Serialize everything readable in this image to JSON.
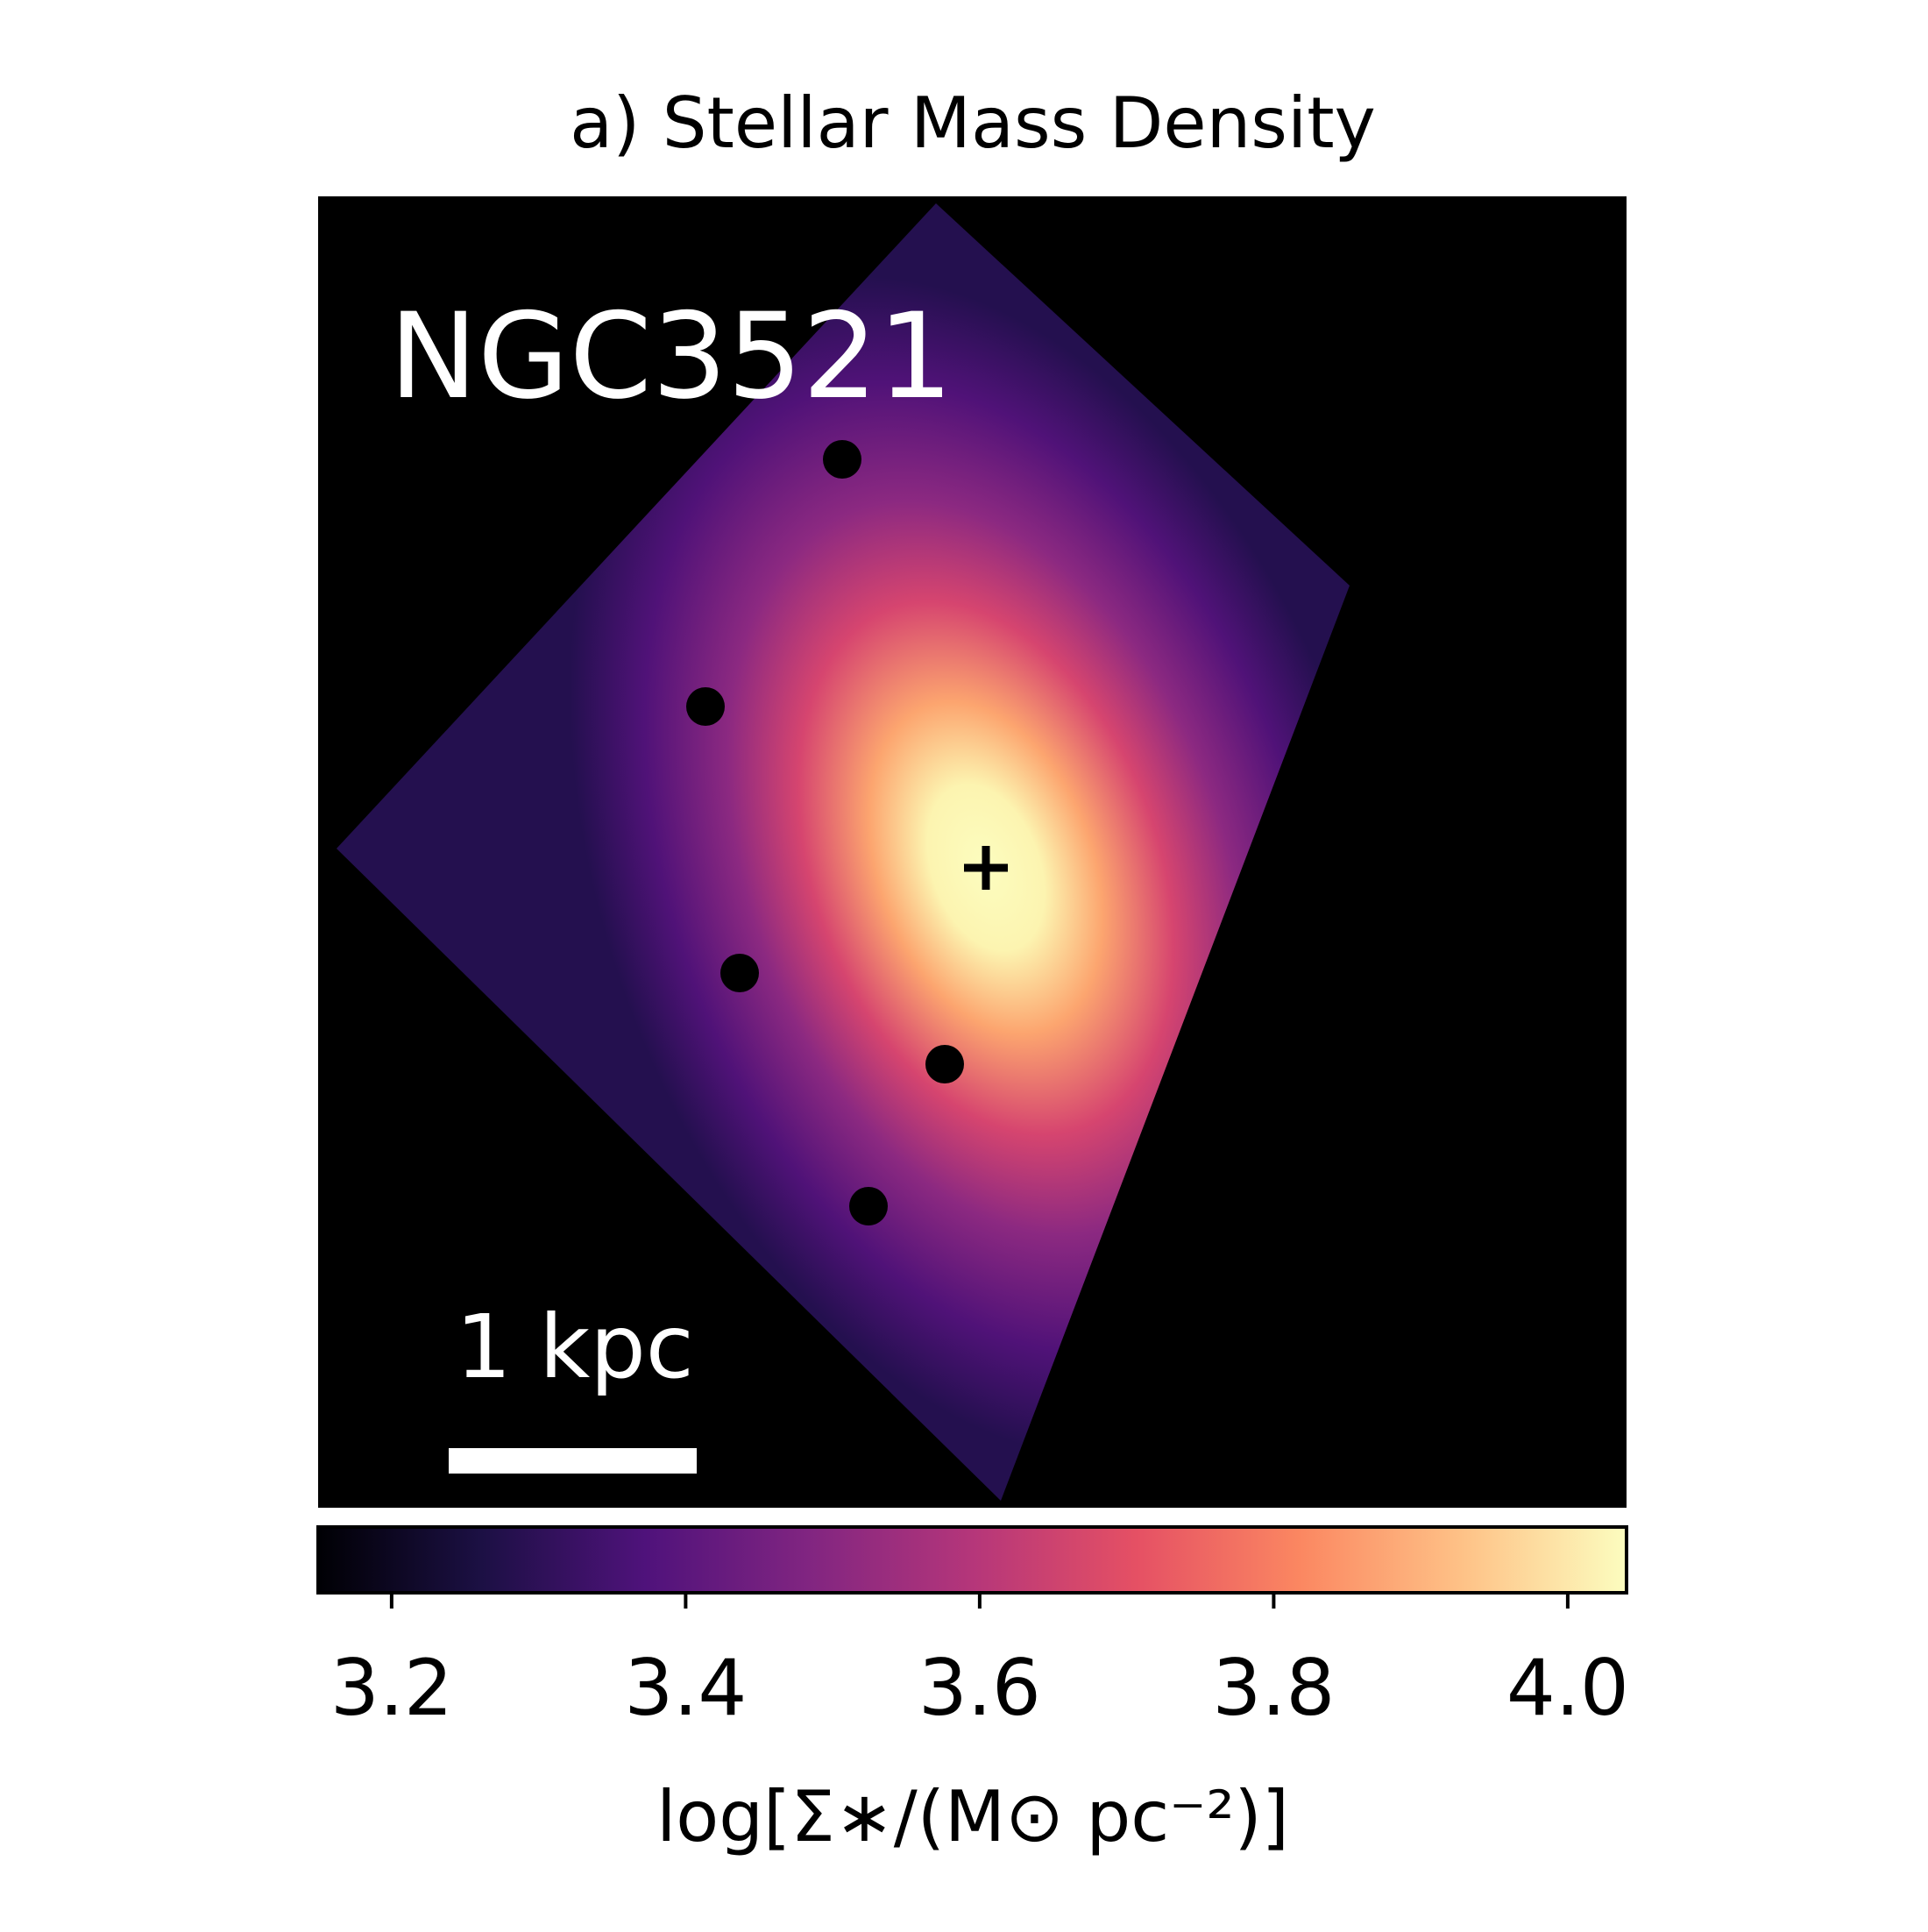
{
  "chart_data": {
    "type": "image",
    "title": "a) Stellar Mass Density",
    "object_label": "NGC3521",
    "scale_bar_label": "1 kpc",
    "colormap": "magma",
    "colorbar": {
      "label": "log[Σ∗/(M⊙ pc⁻²)]",
      "lim": [
        3.15,
        4.04
      ],
      "ticks": [
        3.2,
        3.4,
        3.6,
        3.8,
        {
          "value": 4,
          "label": "4.0"
        }
      ]
    }
  }
}
